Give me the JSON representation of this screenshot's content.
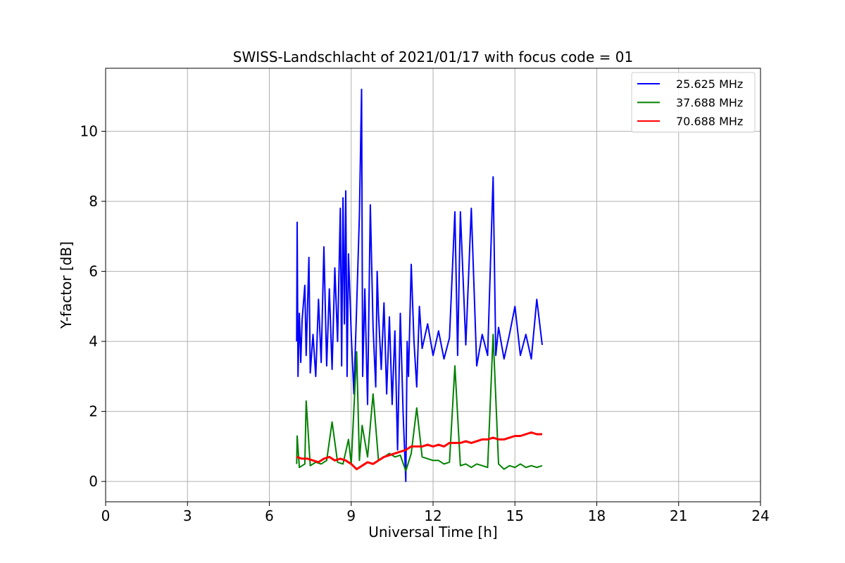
{
  "chart_data": {
    "type": "line",
    "title": "SWISS-Landschlacht of 2021/01/17 with focus code = 01",
    "xlabel": "Universal Time [h]",
    "ylabel": "Y-factor [dB]",
    "xlim": [
      0,
      24
    ],
    "ylim": [
      -0.58,
      11.8
    ],
    "xticks": [
      0,
      3,
      6,
      9,
      12,
      15,
      18,
      21,
      24
    ],
    "yticks": [
      0,
      2,
      4,
      6,
      8,
      10
    ],
    "grid": true,
    "legend_position": "top-right",
    "series": [
      {
        "name": "25.625 MHz",
        "color": "#0000ff",
        "x": [
          7.0,
          7.02,
          7.05,
          7.1,
          7.15,
          7.2,
          7.3,
          7.35,
          7.45,
          7.5,
          7.6,
          7.7,
          7.8,
          7.9,
          8.0,
          8.1,
          8.2,
          8.3,
          8.4,
          8.5,
          8.6,
          8.65,
          8.7,
          8.75,
          8.8,
          8.85,
          8.9,
          9.0,
          9.1,
          9.2,
          9.3,
          9.38,
          9.42,
          9.5,
          9.6,
          9.7,
          9.8,
          9.9,
          9.95,
          10.0,
          10.1,
          10.2,
          10.3,
          10.4,
          10.5,
          10.6,
          10.7,
          10.8,
          10.9,
          11.0,
          11.05,
          11.1,
          11.2,
          11.3,
          11.4,
          11.5,
          11.6,
          11.8,
          12.0,
          12.2,
          12.4,
          12.6,
          12.8,
          12.9,
          13.0,
          13.2,
          13.4,
          13.6,
          13.8,
          14.0,
          14.2,
          14.3,
          14.4,
          14.6,
          14.8,
          15.0,
          15.2,
          15.4,
          15.6,
          15.8,
          16.0
        ],
        "values": [
          4.0,
          7.4,
          3.0,
          4.8,
          3.4,
          4.6,
          5.6,
          3.6,
          6.4,
          3.1,
          4.2,
          3.0,
          5.2,
          3.4,
          6.7,
          3.3,
          5.5,
          3.2,
          6.1,
          4.0,
          7.8,
          3.3,
          8.1,
          4.5,
          8.3,
          3.0,
          6.5,
          4.2,
          2.5,
          5.0,
          7.6,
          11.2,
          3.0,
          5.5,
          2.2,
          7.9,
          4.4,
          2.7,
          6.0,
          4.8,
          3.2,
          5.1,
          2.5,
          4.7,
          2.2,
          4.3,
          0.9,
          4.8,
          2.0,
          0.0,
          4.0,
          3.0,
          6.2,
          4.0,
          2.7,
          5.0,
          3.8,
          4.5,
          3.6,
          4.3,
          3.5,
          4.1,
          7.7,
          3.6,
          7.7,
          3.9,
          7.8,
          3.3,
          4.2,
          3.6,
          8.7,
          3.6,
          4.4,
          3.5,
          4.2,
          5.0,
          3.6,
          4.2,
          3.5,
          5.2,
          3.9
        ]
      },
      {
        "name": "37.688 MHz",
        "color": "#008000",
        "x": [
          7.0,
          7.02,
          7.1,
          7.3,
          7.35,
          7.5,
          7.7,
          7.9,
          8.1,
          8.3,
          8.5,
          8.7,
          8.9,
          9.0,
          9.2,
          9.3,
          9.4,
          9.6,
          9.8,
          10.0,
          10.2,
          10.4,
          10.6,
          10.8,
          11.0,
          11.2,
          11.4,
          11.6,
          11.8,
          12.0,
          12.2,
          12.4,
          12.6,
          12.8,
          13.0,
          13.2,
          13.4,
          13.6,
          13.8,
          14.0,
          14.2,
          14.4,
          14.6,
          14.8,
          15.0,
          15.2,
          15.4,
          15.6,
          15.8,
          16.0
        ],
        "values": [
          0.5,
          1.3,
          0.4,
          0.5,
          2.3,
          0.45,
          0.55,
          0.5,
          0.6,
          1.7,
          0.55,
          0.5,
          1.2,
          0.5,
          3.7,
          0.6,
          1.6,
          0.7,
          2.5,
          0.6,
          0.7,
          0.8,
          0.7,
          0.75,
          0.3,
          0.8,
          2.1,
          0.7,
          0.65,
          0.6,
          0.6,
          0.5,
          0.55,
          3.3,
          0.45,
          0.5,
          0.4,
          0.5,
          0.45,
          0.4,
          4.2,
          0.5,
          0.35,
          0.45,
          0.4,
          0.5,
          0.4,
          0.45,
          0.4,
          0.45
        ]
      },
      {
        "name": "70.688 MHz",
        "color": "#ff0000",
        "x": [
          7.0,
          7.2,
          7.4,
          7.6,
          7.8,
          8.0,
          8.2,
          8.4,
          8.6,
          8.8,
          9.0,
          9.2,
          9.4,
          9.6,
          9.8,
          10.0,
          10.2,
          10.4,
          10.6,
          10.8,
          11.0,
          11.2,
          11.4,
          11.6,
          11.8,
          12.0,
          12.2,
          12.4,
          12.6,
          12.8,
          13.0,
          13.2,
          13.4,
          13.6,
          13.8,
          14.0,
          14.2,
          14.4,
          14.6,
          14.8,
          15.0,
          15.2,
          15.4,
          15.6,
          15.8,
          16.0
        ],
        "values": [
          0.7,
          0.65,
          0.65,
          0.6,
          0.55,
          0.65,
          0.7,
          0.6,
          0.65,
          0.6,
          0.5,
          0.35,
          0.45,
          0.55,
          0.5,
          0.6,
          0.7,
          0.75,
          0.8,
          0.85,
          0.9,
          1.0,
          1.0,
          1.0,
          1.05,
          1.0,
          1.05,
          1.0,
          1.1,
          1.1,
          1.1,
          1.15,
          1.1,
          1.15,
          1.2,
          1.2,
          1.25,
          1.2,
          1.2,
          1.25,
          1.3,
          1.3,
          1.35,
          1.4,
          1.35,
          1.35
        ]
      }
    ]
  }
}
